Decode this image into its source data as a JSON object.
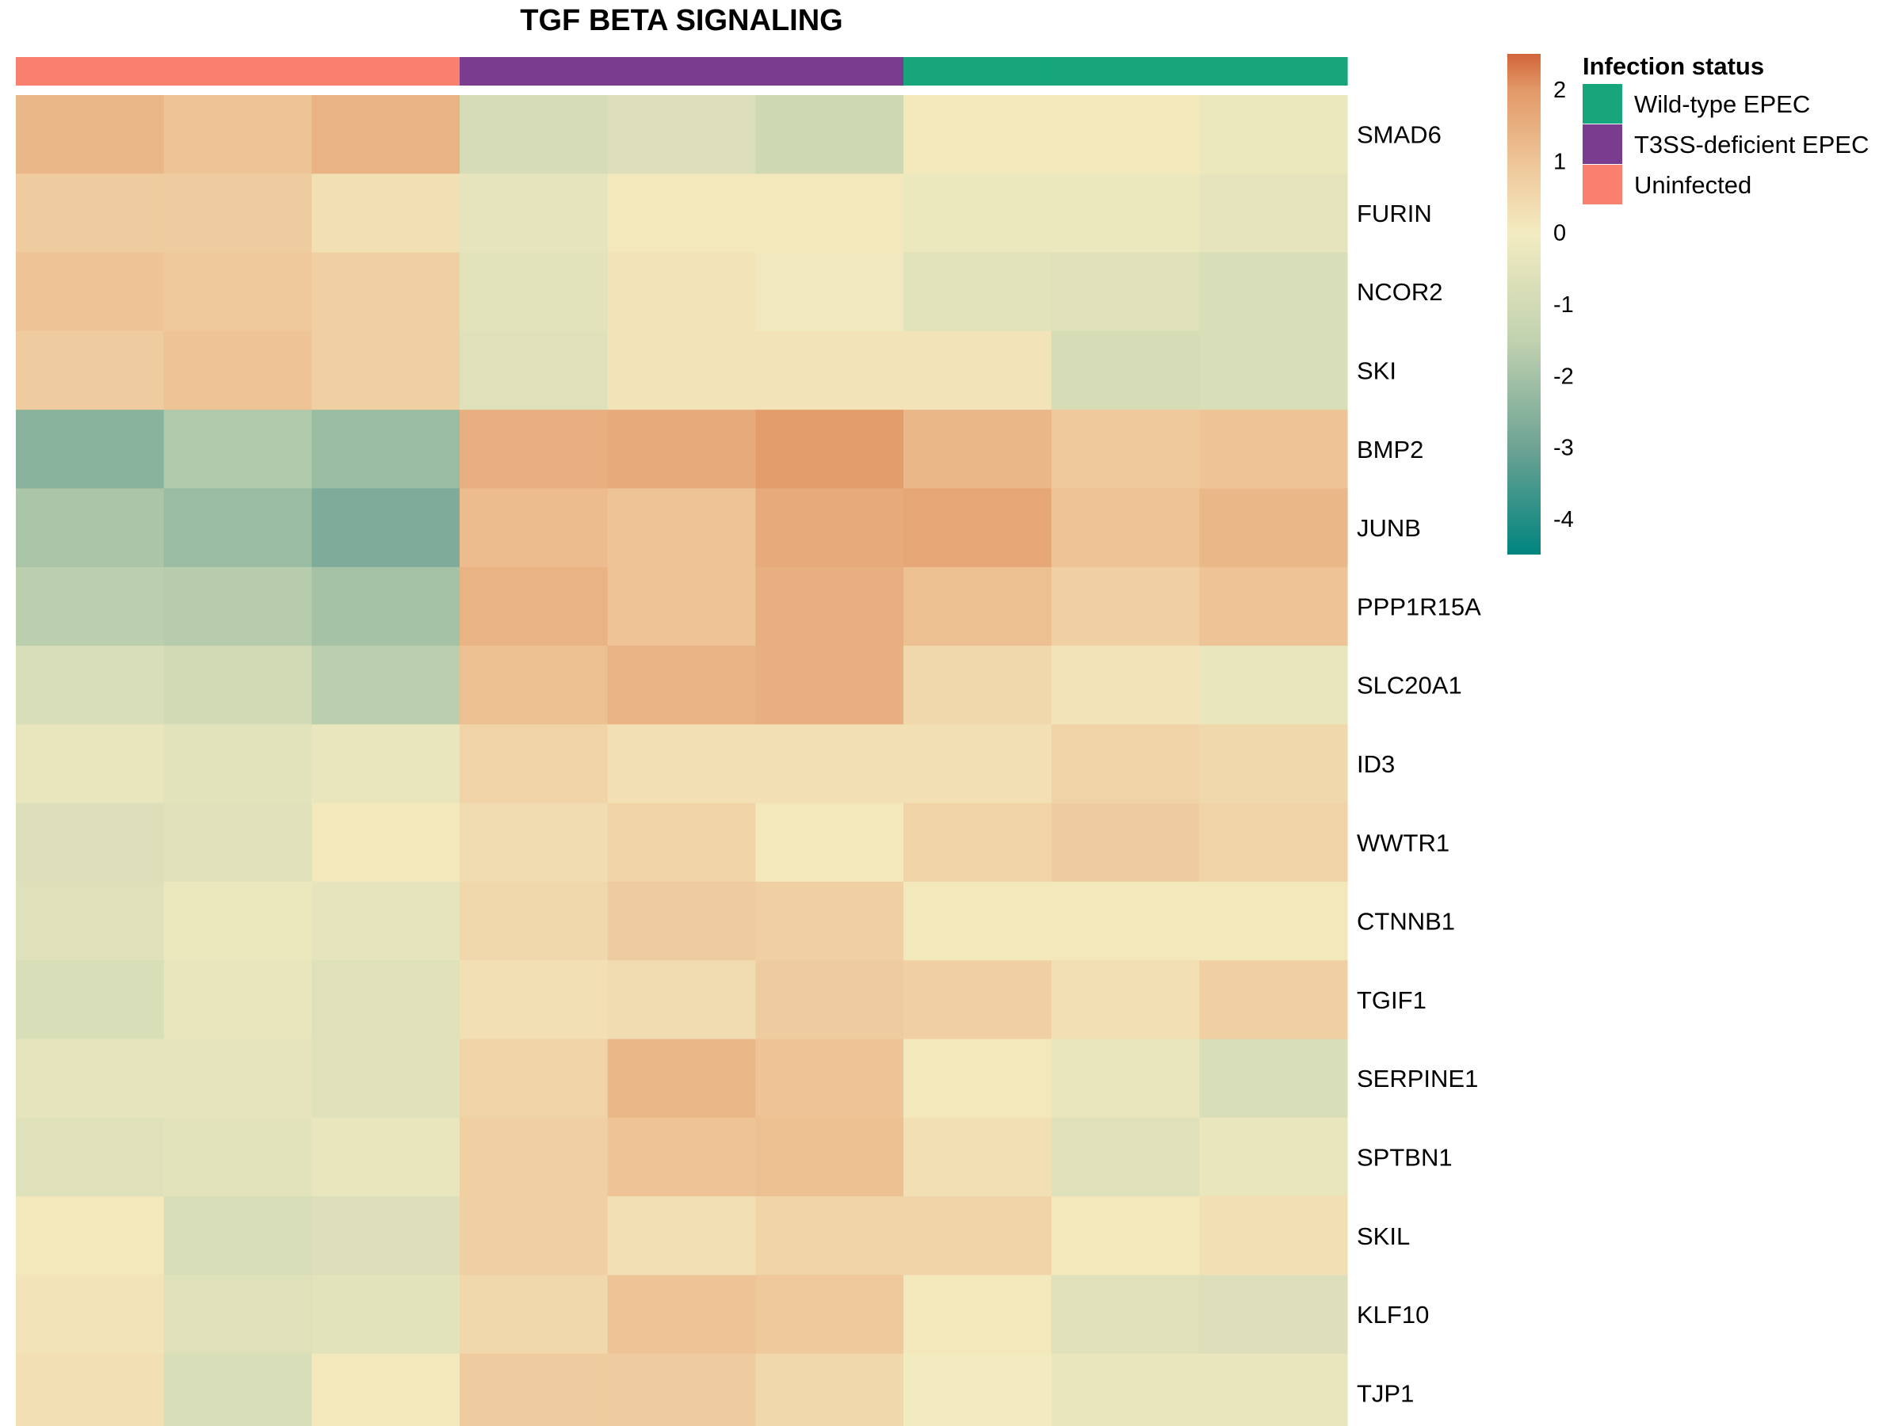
{
  "chart_data": {
    "type": "heatmap",
    "title": "TGF BETA SIGNALING",
    "genes": [
      "SMAD6",
      "FURIN",
      "NCOR2",
      "SKI",
      "BMP2",
      "JUNB",
      "PPP1R15A",
      "SLC20A1",
      "ID3",
      "WWTR1",
      "CTNNB1",
      "TGIF1",
      "SERPINE1",
      "SPTBN1",
      "SKIL",
      "KLF10",
      "TJP1"
    ],
    "sample_groups": [
      "Uninfected",
      "Uninfected",
      "Uninfected",
      "T3SS-deficient EPEC",
      "T3SS-deficient EPEC",
      "T3SS-deficient EPEC",
      "Wild-type EPEC",
      "Wild-type EPEC",
      "Wild-type EPEC"
    ],
    "values": [
      [
        1.3,
        1.0,
        1.4,
        -0.9,
        -0.7,
        -1.1,
        0.1,
        0.1,
        -0.2
      ],
      [
        0.8,
        0.8,
        0.3,
        -0.4,
        0.1,
        0.1,
        -0.2,
        -0.2,
        -0.4
      ],
      [
        1.0,
        0.9,
        0.7,
        -0.5,
        0.2,
        -0.1,
        -0.5,
        -0.6,
        -0.8
      ],
      [
        0.8,
        1.0,
        0.7,
        -0.6,
        0.2,
        0.2,
        0.2,
        -0.9,
        -0.8
      ],
      [
        -2.5,
        -1.8,
        -2.2,
        1.5,
        1.6,
        1.9,
        1.3,
        0.9,
        1.0
      ],
      [
        -1.9,
        -2.2,
        -2.7,
        1.2,
        1.0,
        1.6,
        1.7,
        1.0,
        1.3
      ],
      [
        -1.6,
        -1.7,
        -2.0,
        1.4,
        1.0,
        1.5,
        1.1,
        0.7,
        1.0
      ],
      [
        -0.8,
        -1.0,
        -1.6,
        1.1,
        1.4,
        1.5,
        0.5,
        0.2,
        -0.3
      ],
      [
        -0.3,
        -0.5,
        -0.3,
        0.6,
        0.3,
        0.3,
        0.3,
        0.6,
        0.5
      ],
      [
        -0.7,
        -0.6,
        0.1,
        0.4,
        0.6,
        0.1,
        0.6,
        0.8,
        0.6
      ],
      [
        -0.6,
        -0.2,
        -0.4,
        0.5,
        0.8,
        0.7,
        0.1,
        0.1,
        0.1
      ],
      [
        -0.8,
        -0.3,
        -0.6,
        0.3,
        0.4,
        0.8,
        0.7,
        0.3,
        0.7
      ],
      [
        -0.4,
        -0.4,
        -0.6,
        0.6,
        1.3,
        1.0,
        0.1,
        -0.3,
        -0.8
      ],
      [
        -0.6,
        -0.5,
        -0.3,
        0.7,
        1.0,
        1.1,
        0.3,
        -0.6,
        -0.3
      ],
      [
        0.1,
        -0.8,
        -0.7,
        0.7,
        0.3,
        0.6,
        0.6,
        0.1,
        0.3
      ],
      [
        0.2,
        -0.6,
        -0.5,
        0.5,
        1.0,
        0.9,
        0.1,
        -0.6,
        -0.7
      ],
      [
        0.3,
        -0.8,
        0.1,
        0.8,
        0.8,
        0.5,
        0.0,
        -0.3,
        -0.3
      ]
    ],
    "color_scale": {
      "min": -4.5,
      "max": 2.5,
      "stops": [
        {
          "value": -4.5,
          "color": "#00847e"
        },
        {
          "value": -3,
          "color": "#6ea394"
        },
        {
          "value": -1.5,
          "color": "#c1d2b0"
        },
        {
          "value": 0,
          "color": "#f3ebc0"
        },
        {
          "value": 1,
          "color": "#eec497"
        },
        {
          "value": 2,
          "color": "#e29968"
        },
        {
          "value": 2.5,
          "color": "#d3643a"
        }
      ],
      "ticks": [
        2,
        1,
        0,
        -1,
        -2,
        -3,
        -4
      ]
    },
    "annotation": {
      "title": "Infection status",
      "entries": [
        {
          "label": "Wild-type EPEC",
          "color": "#17a67c"
        },
        {
          "label": "T3SS-deficient EPEC",
          "color": "#7a3c8e"
        },
        {
          "label": "Uninfected",
          "color": "#f9806f"
        }
      ]
    }
  }
}
